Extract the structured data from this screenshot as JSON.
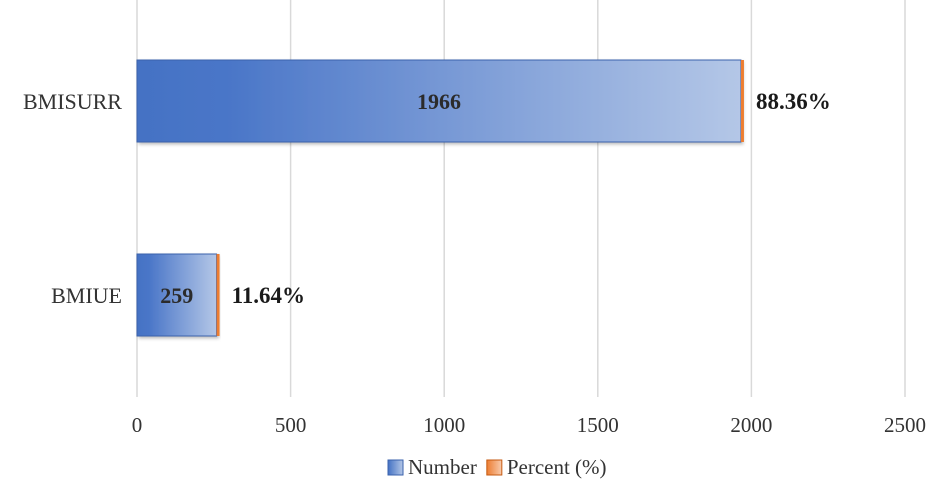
{
  "chart_data": {
    "type": "bar",
    "orientation": "horizontal",
    "stacked": true,
    "categories": [
      "BMISURR",
      "BMIUE"
    ],
    "series": [
      {
        "name": "Number",
        "values": [
          1966,
          259
        ],
        "labels": [
          "1966",
          "259"
        ],
        "color": "#4472c4"
      },
      {
        "name": "Percent (%)",
        "values": [
          88.36,
          11.64
        ],
        "labels": [
          "88.36%",
          "11.64%"
        ],
        "color": "#ed7d31"
      }
    ],
    "xlim": [
      0,
      2500
    ],
    "xticks": [
      "0",
      "500",
      "1000",
      "1500",
      "2000",
      "2500"
    ],
    "grid": "vertical",
    "legend": "bottom-center"
  }
}
